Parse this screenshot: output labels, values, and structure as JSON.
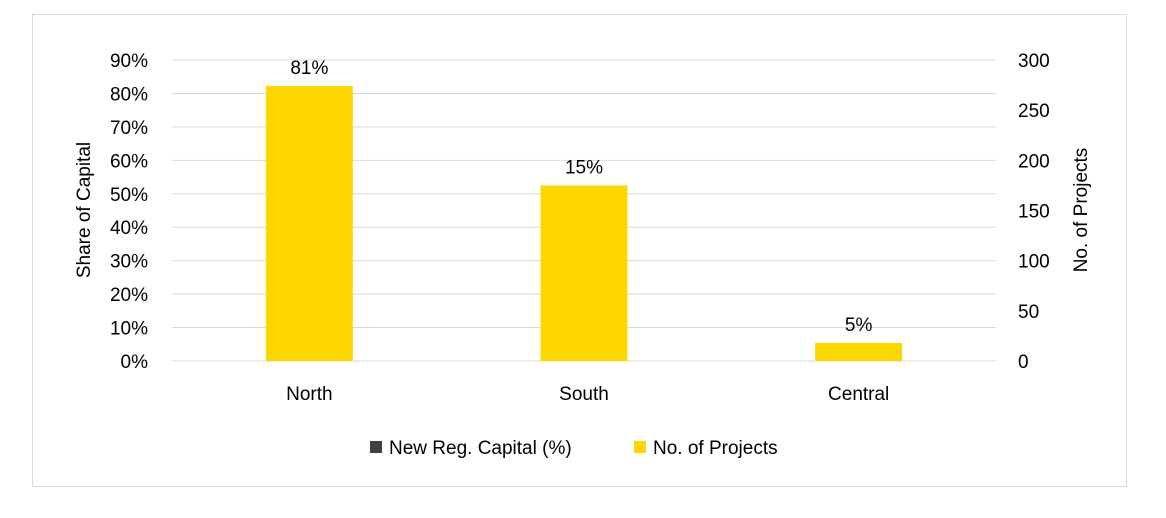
{
  "chart_data": {
    "type": "bar",
    "categories": [
      "North",
      "South",
      "Central"
    ],
    "series": [
      {
        "name": "New Reg. Capital (%)",
        "axis": "left",
        "values": [
          0.81,
          0.15,
          0.05
        ],
        "visible_bars": false,
        "color": "#404040"
      },
      {
        "name": "No. of Projects",
        "axis": "right",
        "values": [
          274,
          175,
          18
        ],
        "color": "#FFD700"
      }
    ],
    "data_labels": [
      "81%",
      "15%",
      "5%"
    ],
    "ylabel_left": "Share of Capital",
    "ylabel_right": "No. of Projects",
    "ylim_left": [
      0,
      0.9
    ],
    "ylim_right": [
      0,
      300
    ],
    "yticks_left": [
      "0%",
      "10%",
      "20%",
      "30%",
      "40%",
      "50%",
      "60%",
      "70%",
      "80%",
      "90%"
    ],
    "yticks_right": [
      "0",
      "50",
      "100",
      "150",
      "200",
      "250",
      "300"
    ],
    "grid": true,
    "legend_position": "bottom"
  }
}
